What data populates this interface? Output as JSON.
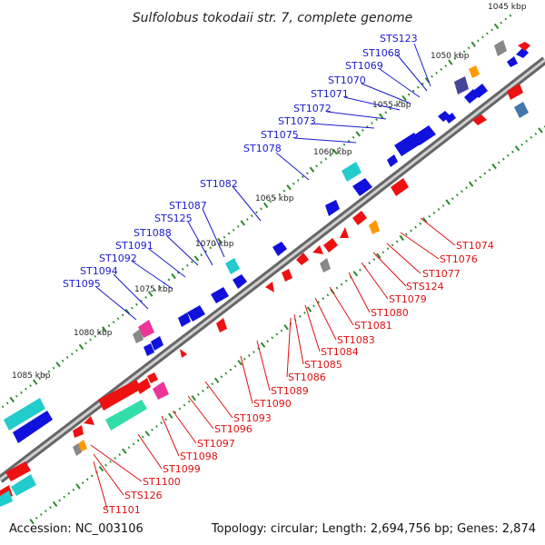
{
  "title": "Sulfolobus tokodaii str. 7, complete genome",
  "footer": {
    "accession": "Accession: NC_003106",
    "topology": "Topology: circular; Length: 2,694,756 bp; Genes: 2,874"
  },
  "kbp_labels": [
    "1045 kbp",
    "1050 kbp",
    "1055 kbp",
    "1060 kbp",
    "1065 kbp",
    "1070 kbp",
    "1075 kbp",
    "1080 kbp",
    "1085 kbp"
  ],
  "genes_top": [
    "STS123",
    "ST1068",
    "ST1069",
    "ST1070",
    "ST1071",
    "ST1072",
    "ST1073",
    "ST1075",
    "ST1078",
    "ST1082",
    "ST1087",
    "STS125",
    "ST1088",
    "ST1091",
    "ST1092",
    "ST1094",
    "ST1095"
  ],
  "genes_bottom": [
    "ST1074",
    "ST1076",
    "ST1077",
    "STS124",
    "ST1079",
    "ST1080",
    "ST1081",
    "ST1083",
    "ST1084",
    "ST1085",
    "ST1086",
    "ST1089",
    "ST1090",
    "ST1093",
    "ST1096",
    "ST1097",
    "ST1098",
    "ST1099",
    "ST1100",
    "STS126",
    "ST1101"
  ],
  "colors": {
    "forward": "#1111dd",
    "reverse": "#ee1111",
    "backbone": "#777777",
    "tick": "#2a8a2a",
    "cyan": "#22cccc",
    "green": "#33ddaa",
    "pink": "#ee3399",
    "orange": "#ff9900",
    "gray": "#888888",
    "purple": "#444499",
    "steel": "#4477aa"
  }
}
